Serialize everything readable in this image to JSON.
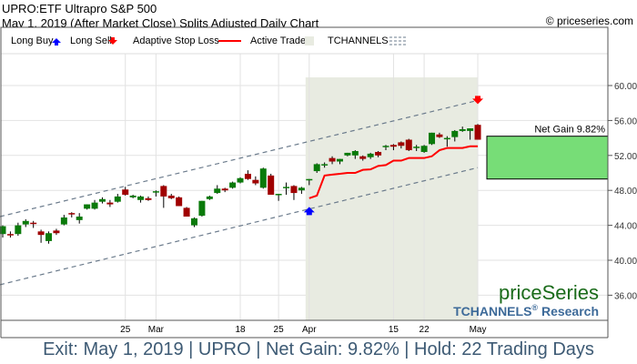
{
  "header": {
    "title": "UPRO:ETF Ultrapro S&P 500",
    "subtitle": "May 1, 2019 (After Market Close)  Splits Adjusted Daily Chart",
    "copyright": "© priceseries.com"
  },
  "legend": {
    "long_buy": "Long Buy",
    "long_sell": "Long Sell",
    "stop_loss": "Adaptive Stop Loss",
    "active_trade": "Active Trade",
    "tchannels": "TCHANNELS"
  },
  "branding": {
    "logo": "priceSeries",
    "research": "TCHANNELS",
    "research_suffix": "Research",
    "reg": "®"
  },
  "footer": "Exit: May 1, 2019 | UPRO | Net Gain: 9.82% | Hold: 22 Trading Days",
  "colors": {
    "up": "#0a7a0a",
    "down": "#a00000",
    "stop": "#ff0000",
    "shade": "#e8ebe1",
    "gain": "#77dd77",
    "channel": "#6b7b8c",
    "buy": "#0000ff",
    "sell": "#ff0000"
  },
  "chart_data": {
    "type": "candlestick",
    "title": "UPRO:ETF Ultrapro S&P 500",
    "ylim": [
      33,
      63
    ],
    "yticks": [
      "60.00",
      "56.00",
      "52.00",
      "48.00",
      "44.00",
      "40.00",
      "36.00"
    ],
    "ytick_values": [
      60,
      56,
      52,
      48,
      44,
      40,
      36
    ],
    "xticks": [
      {
        "label": "25",
        "index": 16
      },
      {
        "label": "Mar",
        "index": 20
      },
      {
        "label": "18",
        "index": 31
      },
      {
        "label": "25",
        "index": 36
      },
      {
        "label": "Apr",
        "index": 40
      },
      {
        "label": "15",
        "index": 51
      },
      {
        "label": "22",
        "index": 55
      },
      {
        "label": "May",
        "index": 62
      }
    ],
    "ohlc": [
      [
        43.0,
        44.0,
        42.6,
        43.9
      ],
      [
        43.0,
        43.3,
        42.6,
        42.9
      ],
      [
        43.0,
        44.3,
        42.8,
        44.0
      ],
      [
        44.1,
        44.7,
        43.8,
        44.5
      ],
      [
        44.3,
        44.5,
        43.7,
        44.2
      ],
      [
        43.3,
        43.5,
        42.0,
        42.9
      ],
      [
        42.2,
        43.3,
        41.9,
        43.1
      ],
      [
        43.4,
        43.6,
        42.9,
        43.1
      ],
      [
        44.1,
        45.2,
        44.0,
        44.9
      ],
      [
        45.4,
        45.5,
        44.9,
        45.3
      ],
      [
        44.6,
        45.4,
        44.2,
        45.0
      ],
      [
        45.9,
        46.4,
        45.8,
        46.4
      ],
      [
        45.9,
        46.9,
        45.8,
        46.6
      ],
      [
        46.7,
        47.2,
        46.5,
        47.0
      ],
      [
        46.6,
        46.9,
        46.1,
        46.4
      ],
      [
        46.7,
        47.6,
        46.6,
        47.3
      ],
      [
        48.1,
        48.4,
        47.4,
        47.5
      ],
      [
        47.2,
        47.5,
        47.1,
        47.4
      ],
      [
        46.9,
        47.4,
        46.6,
        47.3
      ],
      [
        47.1,
        47.3,
        46.8,
        46.9
      ],
      [
        47.9,
        48.0,
        47.3,
        47.9
      ],
      [
        48.5,
        48.6,
        46.0,
        47.3
      ],
      [
        47.4,
        47.6,
        47.0,
        47.1
      ],
      [
        47.2,
        47.3,
        46.2,
        46.2
      ],
      [
        46.0,
        46.1,
        45.0,
        45.0
      ],
      [
        44.0,
        44.9,
        43.8,
        44.8
      ],
      [
        45.1,
        46.8,
        45.0,
        46.8
      ],
      [
        47.0,
        47.4,
        46.9,
        47.3
      ],
      [
        47.7,
        48.6,
        47.6,
        48.2
      ],
      [
        48.2,
        48.3,
        47.8,
        48.0
      ],
      [
        48.3,
        49.0,
        48.2,
        48.9
      ],
      [
        48.9,
        49.5,
        48.8,
        49.4
      ],
      [
        49.9,
        50.3,
        49.2,
        49.3
      ],
      [
        49.2,
        49.6,
        48.6,
        48.8
      ],
      [
        48.3,
        50.6,
        48.2,
        50.5
      ],
      [
        49.7,
        49.9,
        47.5,
        47.5
      ],
      [
        47.5,
        47.6,
        46.8,
        47.6
      ],
      [
        48.4,
        48.9,
        47.5,
        48.4
      ],
      [
        48.5,
        48.6,
        46.9,
        47.7
      ],
      [
        48.0,
        48.4,
        47.6,
        48.3
      ],
      [
        49.2,
        49.3,
        48.6,
        49.3
      ],
      [
        50.2,
        51.1,
        50.0,
        51.0
      ],
      [
        51.0,
        51.2,
        50.6,
        51.0
      ],
      [
        51.7,
        51.9,
        51.0,
        51.3
      ],
      [
        51.3,
        51.6,
        51.0,
        51.6
      ],
      [
        52.0,
        52.3,
        51.9,
        52.3
      ],
      [
        52.0,
        52.6,
        51.6,
        52.5
      ],
      [
        51.9,
        52.0,
        51.4,
        51.6
      ],
      [
        51.8,
        52.3,
        51.6,
        52.2
      ],
      [
        52.4,
        52.5,
        51.8,
        52.0
      ],
      [
        53.1,
        53.2,
        52.6,
        53.1
      ],
      [
        53.2,
        53.3,
        52.6,
        53.0
      ],
      [
        53.5,
        53.6,
        52.8,
        53.1
      ],
      [
        53.8,
        53.9,
        52.5,
        52.6
      ],
      [
        53.0,
        53.2,
        52.5,
        53.0
      ],
      [
        52.4,
        53.2,
        52.3,
        53.1
      ],
      [
        53.3,
        54.6,
        53.2,
        54.6
      ],
      [
        54.4,
        54.6,
        54.0,
        54.1
      ],
      [
        54.0,
        54.2,
        53.0,
        54.0
      ],
      [
        54.1,
        54.9,
        53.6,
        54.8
      ],
      [
        54.8,
        55.3,
        54.7,
        55.0
      ],
      [
        54.8,
        55.1,
        53.8,
        55.1
      ],
      [
        55.5,
        55.6,
        53.8,
        53.8
      ]
    ],
    "stop_loss": {
      "start_index": 40,
      "values": [
        47.1,
        47.4,
        49.7,
        49.8,
        49.9,
        50.0,
        50.0,
        50.35,
        50.4,
        50.8,
        50.9,
        51.4,
        51.4,
        51.7,
        51.7,
        51.7,
        51.9,
        52.6,
        52.85,
        52.85,
        52.85,
        53.05,
        53.05
      ]
    },
    "channel_upper": {
      "start": [
        0,
        45.0
      ],
      "end": [
        62,
        58.3
      ]
    },
    "channel_lower": {
      "start": [
        0,
        37.2
      ],
      "end": [
        62,
        50.6
      ]
    },
    "active_trade": {
      "start_index": 40,
      "end_index": 62
    },
    "signals": [
      {
        "type": "buy",
        "index": 40,
        "price": 45.9
      },
      {
        "type": "sell",
        "index": 62,
        "price": 58.3
      }
    ],
    "net_gain": {
      "label": "Net Gain 9.82%",
      "entry": 49.3,
      "exit": 54.2
    }
  }
}
